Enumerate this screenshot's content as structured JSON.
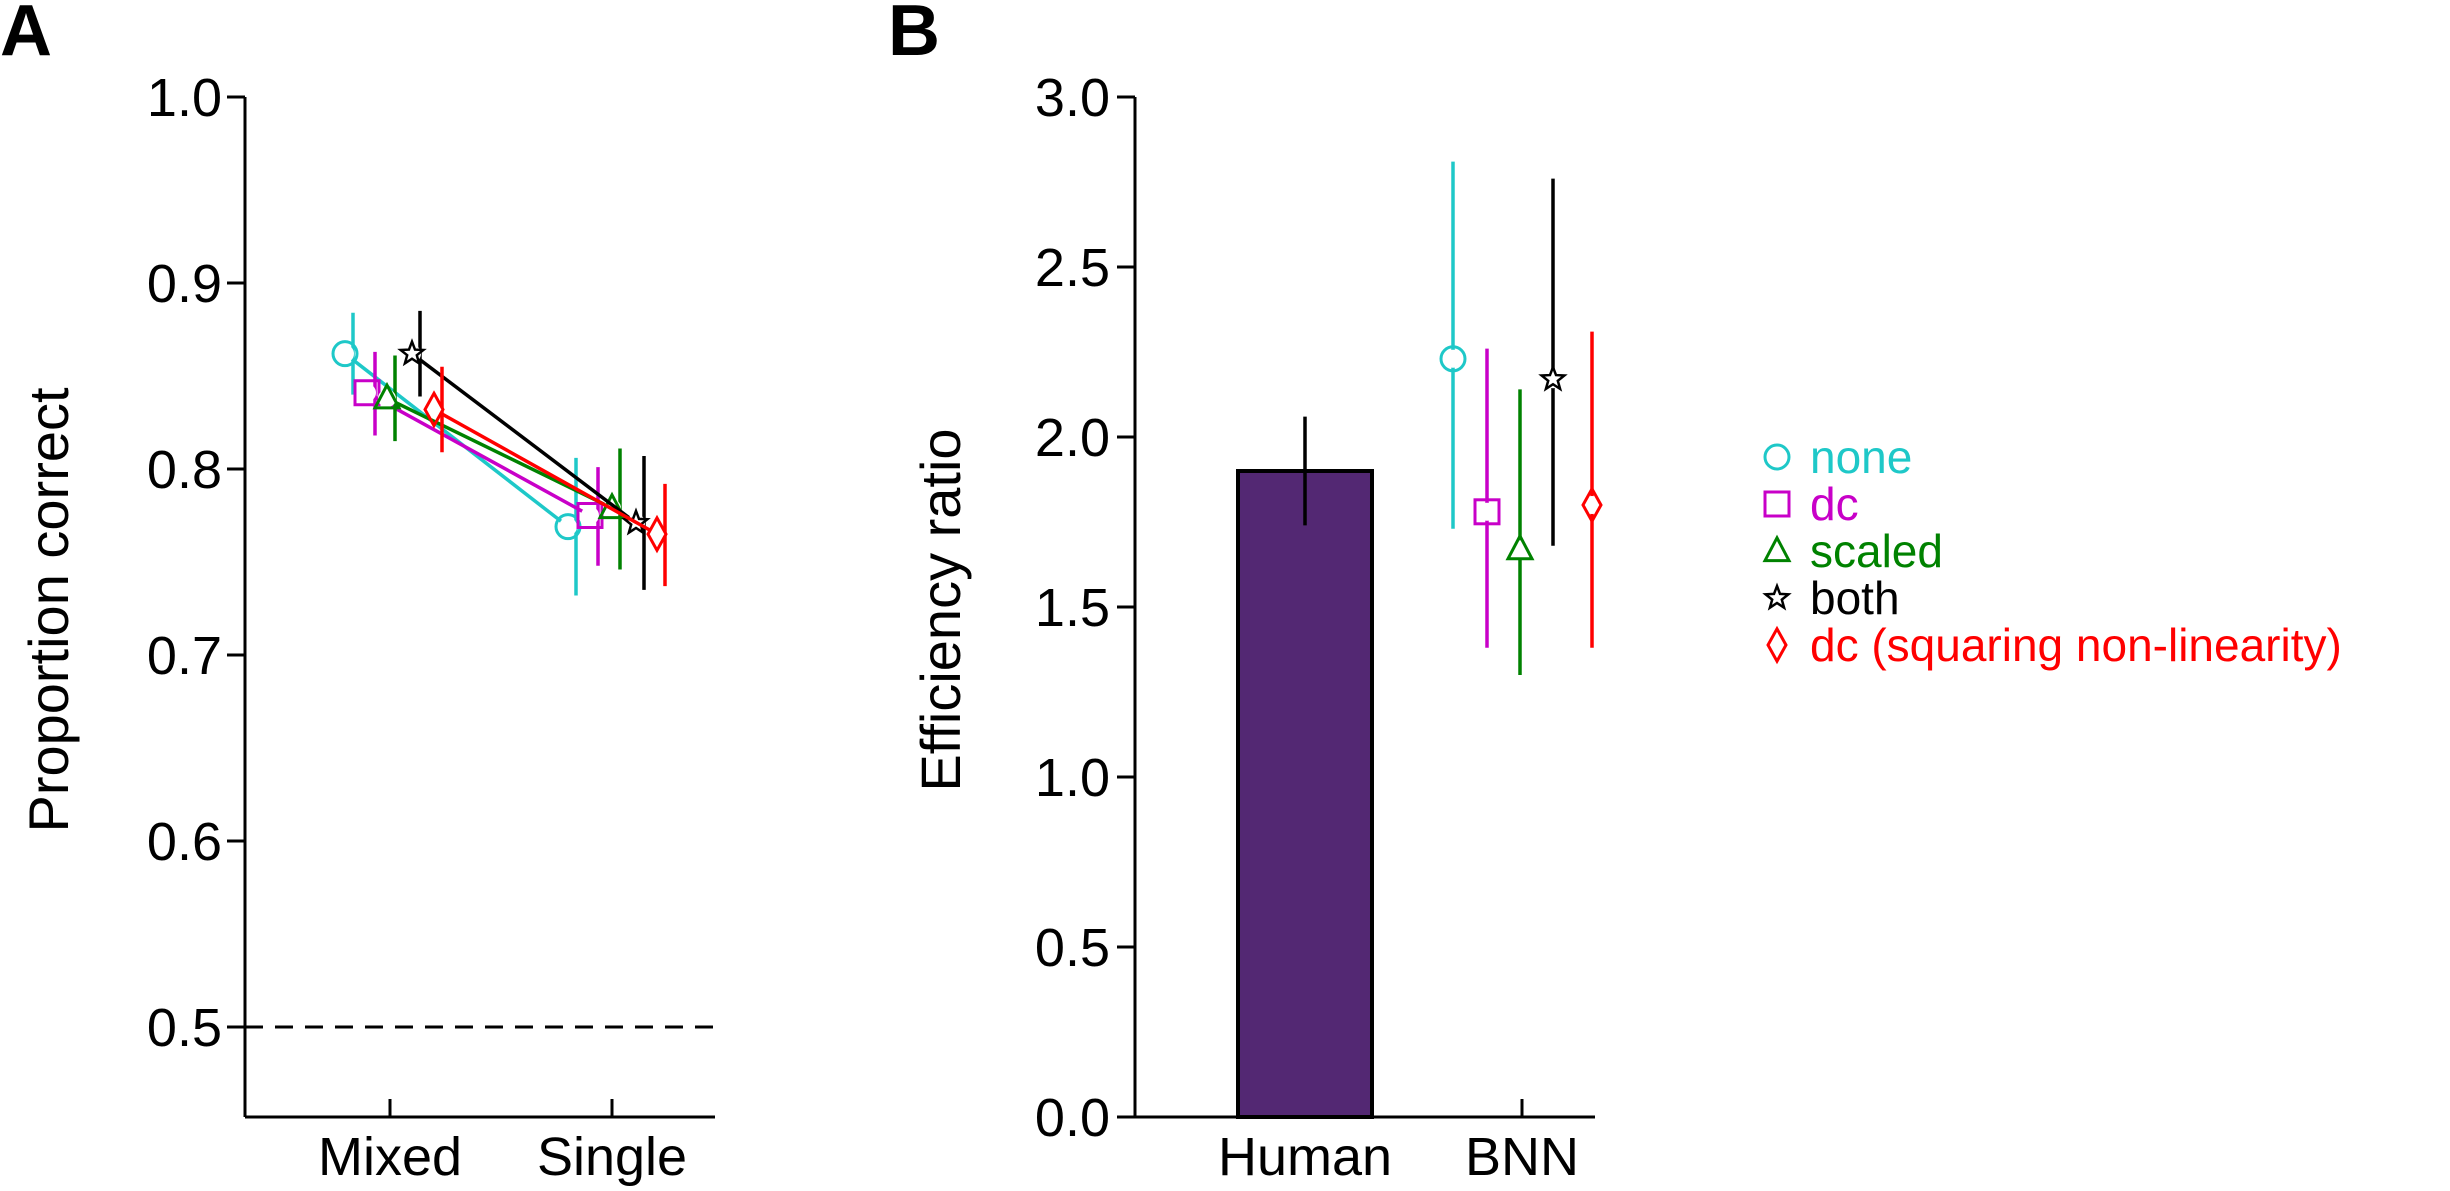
{
  "figure": {
    "panel_a_letter": "A",
    "panel_b_letter": "B"
  },
  "legend": [
    {
      "marker": "circle",
      "label": "none",
      "color": "#1EC8C8"
    },
    {
      "marker": "square",
      "label": "dc",
      "color": "#C800C8"
    },
    {
      "marker": "triangle",
      "label": "scaled",
      "color": "#008200"
    },
    {
      "marker": "star",
      "label": "both",
      "color": "#000000"
    },
    {
      "marker": "diamond",
      "label": "dc (squaring non-linearity)",
      "color": "#FF0000"
    }
  ],
  "chart_data": [
    {
      "type": "line",
      "panel": "A",
      "ylabel": "Proportion correct",
      "xlabel": "",
      "categories": [
        "Mixed",
        "Single"
      ],
      "ylim": [
        0.5,
        1.0
      ],
      "yticks": [
        "0.5",
        "0.6",
        "0.7",
        "0.8",
        "0.9",
        "1.0"
      ],
      "chance_line": 0.5,
      "series": [
        {
          "name": "none",
          "marker": "circle",
          "color": "#1EC8C8",
          "values": [
            0.862,
            0.769
          ],
          "err_low": [
            0.84,
            0.732
          ],
          "err_high": [
            0.884,
            0.806
          ]
        },
        {
          "name": "dc",
          "marker": "square",
          "color": "#C800C8",
          "values": [
            0.841,
            0.775
          ],
          "err_low": [
            0.818,
            0.748
          ],
          "err_high": [
            0.863,
            0.801
          ]
        },
        {
          "name": "scaled",
          "marker": "triangle",
          "color": "#008200",
          "values": [
            0.838,
            0.779
          ],
          "err_low": [
            0.815,
            0.746
          ],
          "err_high": [
            0.861,
            0.811
          ]
        },
        {
          "name": "both",
          "marker": "star",
          "color": "#000000",
          "values": [
            0.862,
            0.771
          ],
          "err_low": [
            0.839,
            0.735
          ],
          "err_high": [
            0.885,
            0.807
          ]
        },
        {
          "name": "dc (squaring non-linearity)",
          "marker": "diamond",
          "color": "#FF0000",
          "values": [
            0.832,
            0.765
          ],
          "err_low": [
            0.809,
            0.737
          ],
          "err_high": [
            0.855,
            0.792
          ]
        }
      ]
    },
    {
      "type": "bar",
      "panel": "B",
      "ylabel": "Efficiency ratio",
      "xlabel": "",
      "categories": [
        "Human",
        "BNN"
      ],
      "ylim": [
        0.0,
        3.0
      ],
      "yticks": [
        "0.0",
        "0.5",
        "1.0",
        "1.5",
        "2.0",
        "2.5",
        "3.0"
      ],
      "bars": [
        {
          "category": "Human",
          "value": 1.9,
          "err_low": 1.74,
          "err_high": 2.06,
          "color": "#532873"
        }
      ],
      "points": [
        {
          "category": "BNN",
          "name": "none",
          "marker": "circle",
          "color": "#1EC8C8",
          "value": 2.23,
          "err_low": 1.73,
          "err_high": 2.81
        },
        {
          "category": "BNN",
          "name": "dc",
          "marker": "square",
          "color": "#C800C8",
          "value": 1.78,
          "err_low": 1.38,
          "err_high": 2.26
        },
        {
          "category": "BNN",
          "name": "scaled",
          "marker": "triangle",
          "color": "#008200",
          "value": 1.67,
          "err_low": 1.3,
          "err_high": 2.14
        },
        {
          "category": "BNN",
          "name": "both",
          "marker": "star",
          "color": "#000000",
          "value": 2.17,
          "err_low": 1.68,
          "err_high": 2.76
        },
        {
          "category": "BNN",
          "name": "dc (squaring non-linearity)",
          "marker": "diamond",
          "color": "#FF0000",
          "value": 1.8,
          "err_low": 1.38,
          "err_high": 2.31
        }
      ]
    }
  ]
}
